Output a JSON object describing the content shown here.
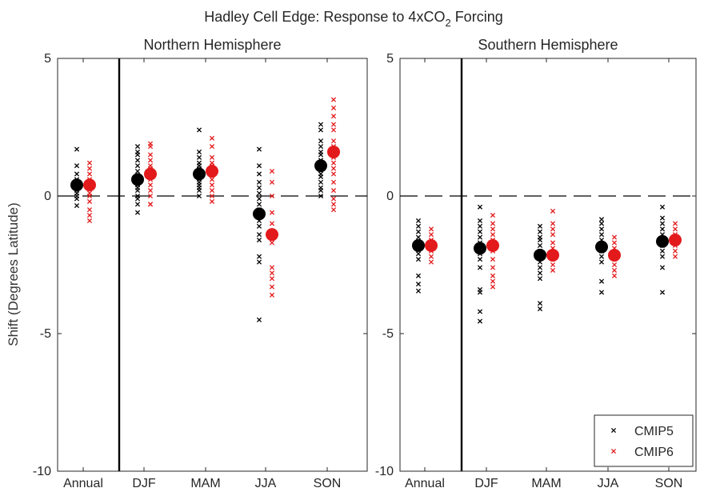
{
  "chart_data": {
    "type": "scatter",
    "title_prefix": "Hadley Cell Edge: Response to 4xCO",
    "title_subscript": "2",
    "title_suffix": " Forcing",
    "ylabel": "Shift (Degrees Latitude)",
    "ylim": [
      -10,
      5
    ],
    "yticks": [
      -10,
      -5,
      0,
      5
    ],
    "categories": [
      "Annual",
      "DJF",
      "MAM",
      "JJA",
      "SON"
    ],
    "grid": false,
    "legend_position": "bottom-right",
    "series": [
      {
        "name": "CMIP5",
        "color": "#000000"
      },
      {
        "name": "CMIP6",
        "color": "#e31a1c"
      }
    ],
    "panels": [
      {
        "title": "Northern Hemisphere",
        "means": {
          "CMIP5": [
            0.4,
            0.6,
            0.8,
            -0.65,
            1.1
          ],
          "CMIP6": [
            0.4,
            0.8,
            0.9,
            -1.4,
            1.6
          ]
        },
        "models": {
          "CMIP5": [
            [
              1.7,
              1.1,
              0.8,
              0.6,
              0.5,
              0.4,
              0.3,
              0.2,
              0.1,
              0.0,
              -0.1,
              -0.35
            ],
            [
              1.8,
              1.6,
              1.5,
              1.3,
              1.1,
              0.9,
              0.7,
              0.6,
              0.5,
              0.4,
              0.3,
              0.2,
              0.0,
              -0.1,
              -0.3,
              -0.6
            ],
            [
              2.4,
              1.6,
              1.4,
              1.2,
              1.1,
              1.0,
              0.9,
              0.8,
              0.7,
              0.6,
              0.5,
              0.4,
              0.3,
              0.2,
              0.0
            ],
            [
              1.7,
              1.1,
              0.8,
              0.5,
              0.3,
              0.1,
              -0.1,
              -0.3,
              -0.5,
              -0.7,
              -0.9,
              -1.1,
              -1.4,
              -1.6,
              -2.2,
              -2.4,
              -4.5
            ],
            [
              2.6,
              2.4,
              2.0,
              1.8,
              1.6,
              1.5,
              1.3,
              1.1,
              1.0,
              0.8,
              0.7,
              0.5,
              0.3,
              0.2,
              0.0
            ]
          ],
          "CMIP6": [
            [
              1.2,
              1.0,
              0.8,
              0.6,
              0.5,
              0.3,
              0.1,
              0.0,
              -0.2,
              -0.5,
              -0.7,
              -0.9
            ],
            [
              1.9,
              1.8,
              1.5,
              1.3,
              1.1,
              1.0,
              0.8,
              0.6,
              0.4,
              0.2,
              0.0,
              -0.3,
              -0.3
            ],
            [
              2.1,
              1.8,
              1.4,
              1.2,
              1.1,
              1.0,
              0.9,
              0.8,
              0.6,
              0.4,
              0.2,
              0.0,
              -0.2
            ],
            [
              0.9,
              0.5,
              0.0,
              -0.6,
              -1.0,
              -1.4,
              -1.7,
              -2.6,
              -2.8,
              -3.0,
              -3.3,
              -3.6
            ],
            [
              3.5,
              3.2,
              2.9,
              2.6,
              2.4,
              2.0,
              1.8,
              1.6,
              1.4,
              1.2,
              1.0,
              0.8,
              0.5,
              0.2,
              -0.1,
              -0.3,
              -0.5
            ]
          ]
        }
      },
      {
        "title": "Southern Hemisphere",
        "means": {
          "CMIP5": [
            -1.8,
            -1.9,
            -2.15,
            -1.85,
            -1.65
          ],
          "CMIP6": [
            -1.8,
            -1.8,
            -2.15,
            -2.15,
            -1.6
          ]
        },
        "models": {
          "CMIP5": [
            [
              -0.9,
              -1.1,
              -1.3,
              -1.5,
              -1.7,
              -1.9,
              -2.1,
              -2.3,
              -2.9,
              -3.2,
              -3.45
            ],
            [
              -0.4,
              -0.9,
              -1.1,
              -1.3,
              -1.5,
              -1.7,
              -1.9,
              -2.1,
              -2.3,
              -2.6,
              -3.4,
              -3.5,
              -4.2,
              -4.55
            ],
            [
              -1.1,
              -1.3,
              -1.5,
              -1.6,
              -1.8,
              -2.0,
              -2.2,
              -2.4,
              -2.6,
              -2.8,
              -3.0,
              -3.9,
              -4.1
            ],
            [
              -0.85,
              -1.0,
              -1.2,
              -1.4,
              -1.6,
              -1.8,
              -2.0,
              -2.2,
              -2.4,
              -3.1,
              -3.5
            ],
            [
              -0.4,
              -0.8,
              -1.0,
              -1.2,
              -1.4,
              -1.6,
              -1.8,
              -2.0,
              -2.2,
              -2.6,
              -3.5
            ]
          ],
          "CMIP6": [
            [
              -1.2,
              -1.4,
              -1.6,
              -1.8,
              -2.0,
              -2.2,
              -2.4
            ],
            [
              -0.7,
              -1.0,
              -1.2,
              -1.4,
              -1.6,
              -1.8,
              -2.0,
              -2.3,
              -2.6,
              -2.9,
              -3.1,
              -3.3
            ],
            [
              -0.55,
              -1.0,
              -1.2,
              -1.4,
              -1.7,
              -1.9,
              -2.1,
              -2.3,
              -2.5,
              -2.7
            ],
            [
              -1.5,
              -1.7,
              -1.9,
              -2.1,
              -2.3,
              -2.5,
              -2.7,
              -2.9
            ],
            [
              -1.0,
              -1.2,
              -1.4,
              -1.6,
              -1.8,
              -2.0,
              -2.2
            ]
          ]
        }
      }
    ]
  }
}
